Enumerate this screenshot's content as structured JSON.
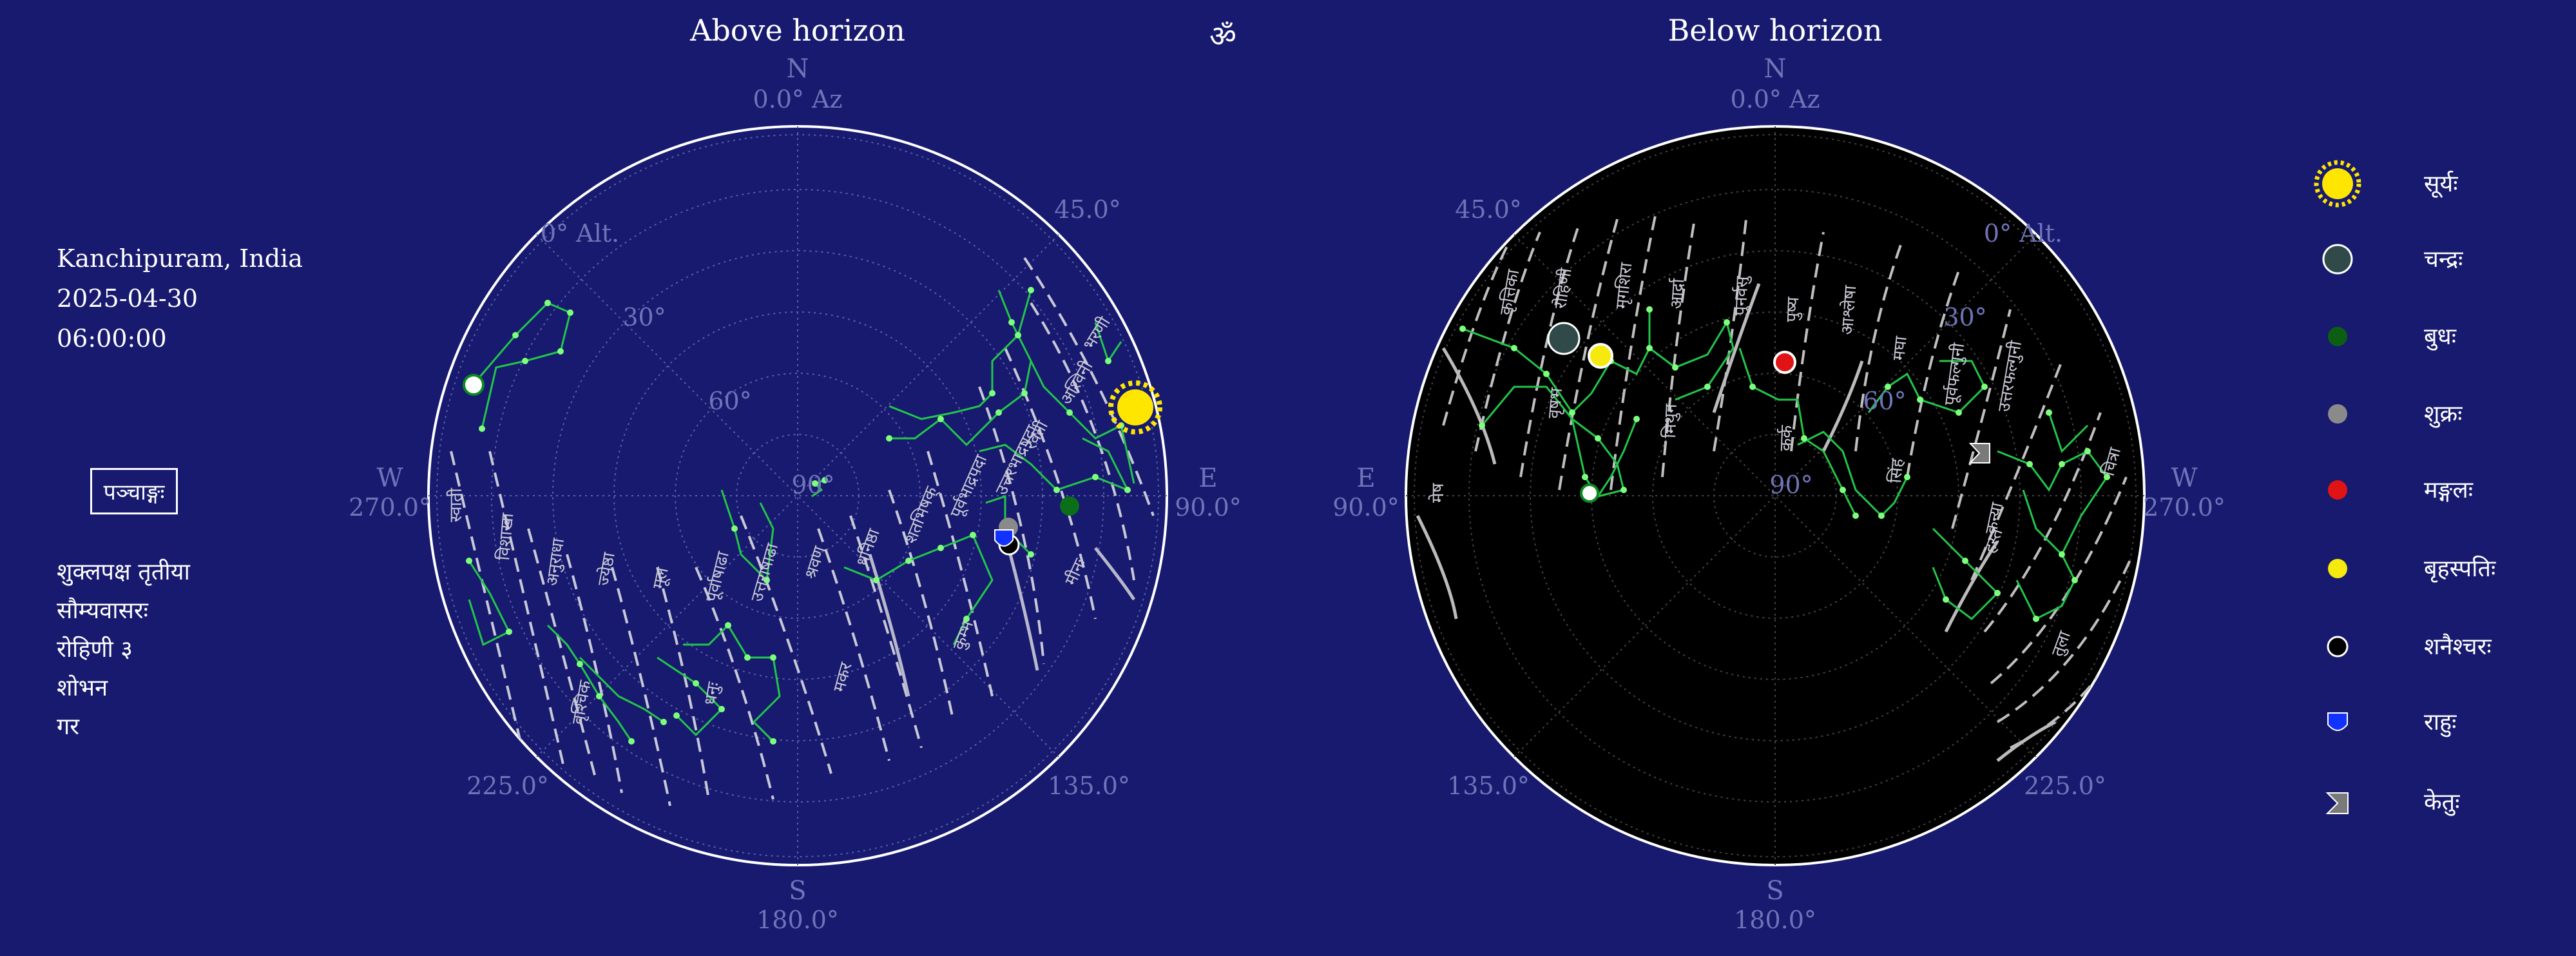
{
  "titles": {
    "above": "Above horizon",
    "below": "Below horizon",
    "om": "ॐ"
  },
  "location": {
    "place": "Kanchipuram, India",
    "date": "2025-04-30",
    "time": "06:00:00"
  },
  "panchang": {
    "button_label": "पञ्चाङ्गः",
    "tithi": "शुक्लपक्ष तृतीया",
    "vaara": "सौम्यवासरः",
    "nakshatra": "रोहिणी  ३",
    "yoga": "शोभन",
    "karana": "गर"
  },
  "above_chart": {
    "north": "N",
    "north_az": "0.0° Az",
    "south": "S",
    "south_az": "180.0°",
    "west": "W",
    "west_az": "270.0°",
    "east": "E",
    "east_az": "90.0°",
    "alt_label": "0° Alt.",
    "r30": "30°",
    "r60": "60°",
    "r90": "90°",
    "deg45": "45.0°",
    "deg135": "135.0°",
    "deg225": "225.0°",
    "nakshatras": [
      "स्वाती",
      "विशाखा",
      "अनुराधा",
      "ज्येष्ठा",
      "मूल",
      "पूर्वाषाढा",
      "उत्तराषाढा",
      "श्रवण",
      "धनिष्ठा",
      "शतभिषक्",
      "पूर्वभाद्रपदा",
      "उत्तरभाद्रपदा",
      "रेवती",
      "अश्विनी",
      "भरणी",
      "वृश्चिक",
      "धनुः",
      "मकर",
      "कुम्भ",
      "मीनः"
    ]
  },
  "below_chart": {
    "north": "N",
    "north_az": "0.0° Az",
    "south": "S",
    "south_az": "180.0°",
    "east": "E",
    "east_az": "90.0°",
    "west": "W",
    "west_az": "270.0°",
    "alt_label": "0° Alt.",
    "r30": "30°",
    "r60": "60°",
    "r90": "90°",
    "deg45": "45.0°",
    "deg135": "135.0°",
    "deg225": "225.0°",
    "nakshatras": [
      "कृत्तिका",
      "रोहिणी",
      "मृगशिरा",
      "आर्द्रा",
      "पुनर्वसु",
      "पुष्य",
      "आश्लेषा",
      "मघा",
      "पूर्वफल्गुनी",
      "उत्तरफल्गुनी",
      "हस्त",
      "चित्रा",
      "वृषभ",
      "मिथुन",
      "कर्क",
      "सिंह",
      "कन्या",
      "तुला",
      "मेष"
    ]
  },
  "legend": [
    {
      "icon": "sun-icon",
      "label": "सूर्यः",
      "color": "#ffe600"
    },
    {
      "icon": "moon-icon",
      "label": "चन्द्रः",
      "color": "#2f4a48"
    },
    {
      "icon": "mercury-icon",
      "label": "बुधः",
      "color": "#0b5e12"
    },
    {
      "icon": "venus-icon",
      "label": "शुक्रः",
      "color": "#8a8a8a"
    },
    {
      "icon": "mars-icon",
      "label": "मङ्गलः",
      "color": "#e01414"
    },
    {
      "icon": "jupiter-icon",
      "label": "बृहस्पतिः",
      "color": "#f5e90e"
    },
    {
      "icon": "saturn-icon",
      "label": "शनैश्चरः",
      "color": "#000000"
    },
    {
      "icon": "rahu-icon",
      "label": "राहुः",
      "color": "#1232ff"
    },
    {
      "icon": "ketu-icon",
      "label": "केतुः",
      "color": "#7a7a7a"
    }
  ],
  "colors": {
    "background": "#171a6e",
    "constellation": "#22c64a",
    "star": "#7dff7d",
    "below_disc": "#000000"
  }
}
